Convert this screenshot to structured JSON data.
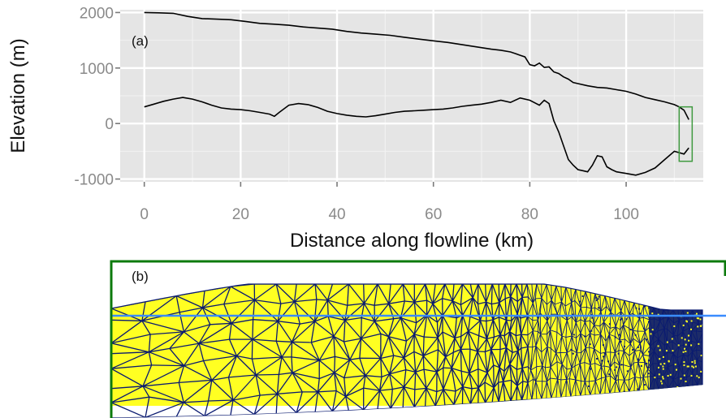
{
  "chart_data": [
    {
      "type": "line",
      "panel_label": "(a)",
      "xlabel": "Distance along flowline (km)",
      "ylabel": "Elevation (m)",
      "xlim": [
        -5,
        116
      ],
      "ylim": [
        -1050,
        2050
      ],
      "x_ticks": [
        0,
        20,
        40,
        60,
        80,
        100
      ],
      "x_tick_labels": [
        "0",
        "20",
        "40",
        "60",
        "80",
        "100"
      ],
      "y_ticks": [
        2000,
        1000,
        0,
        -1000
      ],
      "y_tick_labels": [
        "2000",
        "1000",
        "0",
        "-1000"
      ],
      "grid": true,
      "series": [
        {
          "role": "surface",
          "color": "#000000",
          "x": [
            0,
            3,
            6,
            9,
            12,
            15,
            18,
            21,
            24,
            27,
            30,
            33,
            36,
            39,
            42,
            45,
            48,
            51,
            54,
            57,
            60,
            63,
            66,
            69,
            72,
            74,
            76,
            77,
            78,
            79,
            80,
            81,
            82,
            83,
            84,
            85,
            86,
            87,
            88,
            89,
            90,
            92,
            94,
            96,
            98,
            100,
            102,
            104,
            106,
            108,
            110,
            111,
            112,
            113
          ],
          "y": [
            2000,
            1995,
            1985,
            1930,
            1890,
            1880,
            1870,
            1840,
            1805,
            1790,
            1770,
            1740,
            1720,
            1700,
            1660,
            1630,
            1610,
            1590,
            1555,
            1520,
            1490,
            1460,
            1420,
            1380,
            1340,
            1320,
            1290,
            1260,
            1230,
            1200,
            1060,
            1040,
            1090,
            1010,
            1020,
            930,
            900,
            840,
            800,
            740,
            720,
            680,
            650,
            640,
            610,
            580,
            530,
            470,
            430,
            390,
            340,
            300,
            240,
            70
          ]
        },
        {
          "role": "bed",
          "color": "#000000",
          "x": [
            0,
            2,
            4,
            6,
            8,
            10,
            12,
            14,
            16,
            18,
            20,
            22,
            24,
            26,
            27,
            28,
            30,
            32,
            34,
            36,
            38,
            40,
            42,
            44,
            46,
            48,
            50,
            52,
            54,
            56,
            58,
            60,
            62,
            64,
            66,
            68,
            70,
            72,
            74,
            76,
            78,
            80,
            82,
            83,
            84,
            85,
            86,
            87,
            88,
            89,
            90,
            91,
            92,
            93,
            94,
            95,
            96,
            97,
            98,
            100,
            102,
            104,
            106,
            108,
            110,
            112,
            113
          ],
          "y": [
            300,
            350,
            400,
            440,
            470,
            440,
            390,
            330,
            280,
            260,
            250,
            230,
            200,
            170,
            130,
            200,
            330,
            360,
            340,
            290,
            220,
            180,
            150,
            130,
            120,
            140,
            170,
            200,
            220,
            230,
            240,
            250,
            260,
            280,
            310,
            330,
            350,
            380,
            420,
            380,
            460,
            420,
            330,
            420,
            360,
            50,
            -150,
            -400,
            -650,
            -750,
            -830,
            -850,
            -870,
            -750,
            -580,
            -600,
            -780,
            -830,
            -870,
            -900,
            -930,
            -880,
            -800,
            -650,
            -500,
            -550,
            -440
          ]
        }
      ],
      "annotation": {
        "shape": "rectangle",
        "color": "#3f9a3f",
        "x_range": [
          111,
          113.7
        ],
        "y_range": [
          -680,
          300
        ]
      }
    },
    {
      "type": "mesh",
      "panel_label": "(b)",
      "frame_color": "#0c7a0c",
      "fill_color": "#ffff22",
      "edge_color": "#0a1a70",
      "line_color": "#3a8cff"
    }
  ]
}
